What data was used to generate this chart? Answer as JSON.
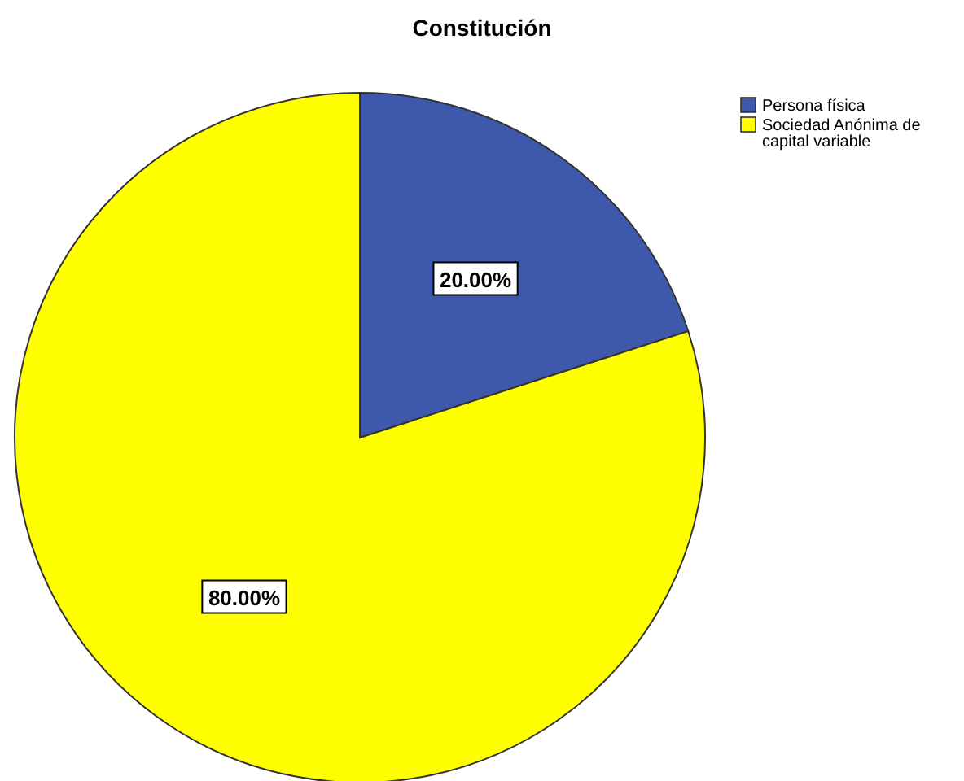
{
  "chart_data": {
    "type": "pie",
    "title": "Constitución",
    "categories": [
      "Persona física",
      "Sociedad Anónima de capital variable"
    ],
    "values": [
      20,
      80
    ],
    "colors": [
      "#3e58ac",
      "#ffff00"
    ],
    "value_labels": [
      "20.00%",
      "80.00%"
    ],
    "legend": "top right"
  }
}
